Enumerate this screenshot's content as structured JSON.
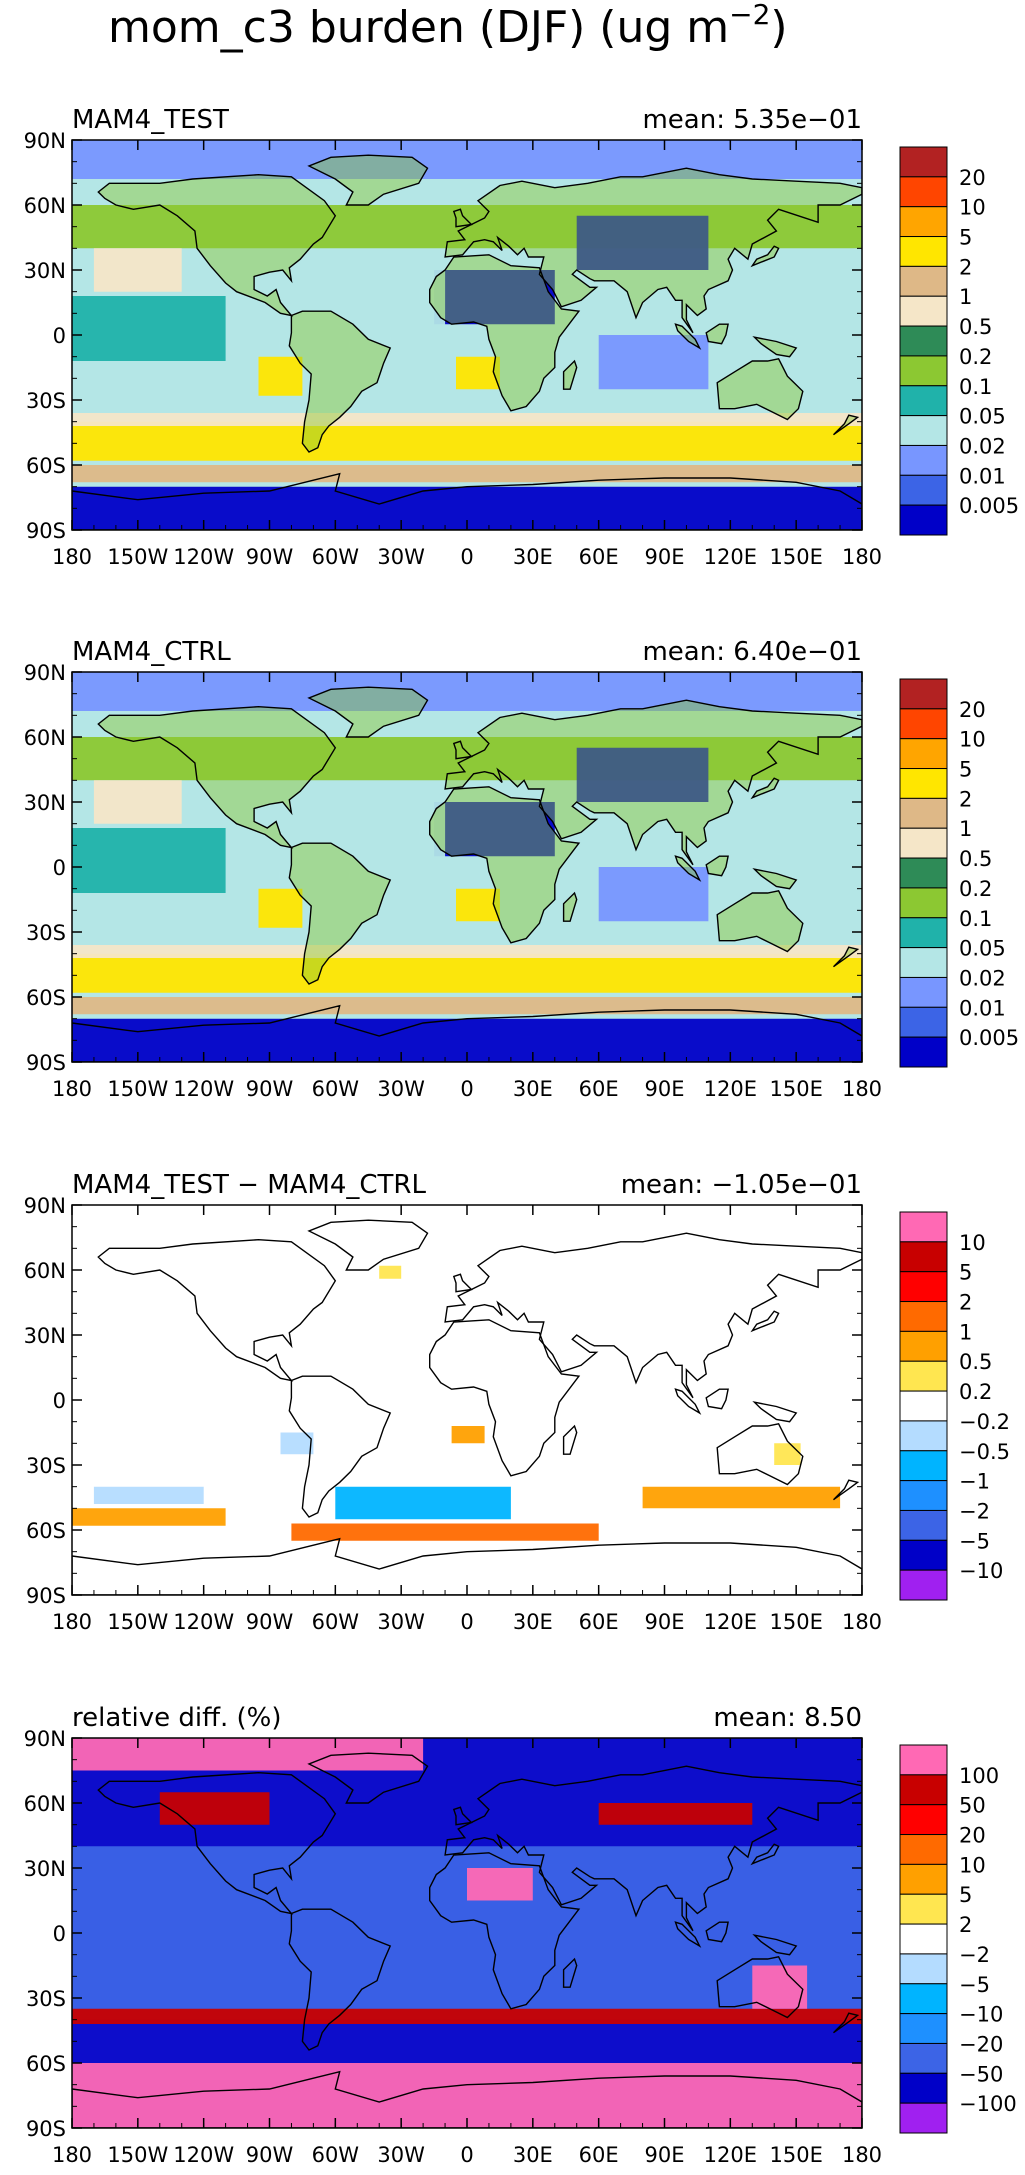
{
  "figure": {
    "title": "mom_c3 burden (DJF) (ug m",
    "title_exponent": "−2",
    "title_close": ")"
  },
  "axes": {
    "lat_ticks": [
      "90N",
      "60N",
      "30N",
      "0",
      "30S",
      "60S",
      "90S"
    ],
    "lon_ticks": [
      "180",
      "150W",
      "120W",
      "90W",
      "60W",
      "30W",
      "0",
      "30E",
      "60E",
      "90E",
      "120E",
      "150E",
      "180"
    ]
  },
  "colors": {
    "burden": [
      "#0000c8",
      "#3c64e6",
      "#7896ff",
      "#b4e6e6",
      "#20b2aa",
      "#8cc832",
      "#2e8b57",
      "#f5e6c8",
      "#deb887",
      "#ffe600",
      "#ffa500",
      "#ff4500",
      "#b22222"
    ],
    "diff": [
      "#a020f0",
      "#0000c8",
      "#3c64e6",
      "#1e90ff",
      "#00b4ff",
      "#b4dcff",
      "#ffffff",
      "#ffe650",
      "#ffa000",
      "#ff6a00",
      "#ff0000",
      "#c80000",
      "#ff69b4"
    ],
    "coast": "#000000"
  },
  "chart_data": [
    {
      "type": "heatmap",
      "title": "MAM4_TEST",
      "stat_label": "mean: 5.35e−01",
      "mean": 0.535,
      "colorbar": "burden",
      "colorbar_labels": [
        "20",
        "10",
        "5",
        "2",
        "1",
        "0.5",
        "0.2",
        "0.1",
        "0.05",
        "0.02",
        "0.01",
        "0.005"
      ],
      "xlim": [
        -180,
        180
      ],
      "ylim": [
        -90,
        90
      ]
    },
    {
      "type": "heatmap",
      "title": "MAM4_CTRL",
      "stat_label": "mean: 6.40e−01",
      "mean": 0.64,
      "colorbar": "burden",
      "colorbar_labels": [
        "20",
        "10",
        "5",
        "2",
        "1",
        "0.5",
        "0.2",
        "0.1",
        "0.05",
        "0.02",
        "0.01",
        "0.005"
      ],
      "xlim": [
        -180,
        180
      ],
      "ylim": [
        -90,
        90
      ]
    },
    {
      "type": "heatmap",
      "title": "MAM4_TEST − MAM4_CTRL",
      "stat_label": "mean: −1.05e−01",
      "mean": -0.105,
      "colorbar": "diff",
      "colorbar_labels": [
        "10",
        "5",
        "2",
        "1",
        "0.5",
        "0.2",
        "−0.2",
        "−0.5",
        "−1",
        "−2",
        "−5",
        "−10"
      ],
      "xlim": [
        -180,
        180
      ],
      "ylim": [
        -90,
        90
      ]
    },
    {
      "type": "heatmap",
      "title": "relative diff. (%)",
      "stat_label": "mean:  8.50",
      "mean": 8.5,
      "colorbar": "diff",
      "colorbar_labels": [
        "100",
        "50",
        "20",
        "10",
        "5",
        "2",
        "−2",
        "−5",
        "−10",
        "−20",
        "−50",
        "−100"
      ],
      "xlim": [
        -180,
        180
      ],
      "ylim": [
        -90,
        90
      ]
    }
  ]
}
